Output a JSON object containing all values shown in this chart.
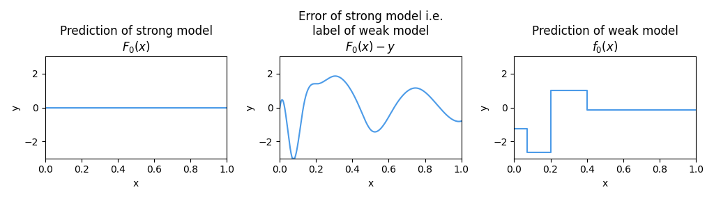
{
  "title1_l1": "Prediction of strong model",
  "title1_l2": "F_0(x)",
  "title2_l1": "Error of strong model i.e.",
  "title2_l2": "label of weak model",
  "title2_l3": "F_0(x) - y",
  "title3_l1": "Prediction of weak model",
  "title3_l2": "f_0(x)",
  "xlabel": "x",
  "ylabel": "y",
  "xlim": [
    0.0,
    1.0
  ],
  "ylim": [
    -3,
    3
  ],
  "line_color": "#4c9be8",
  "background_color": "#ffffff",
  "sine_amp": 3.0,
  "sine_k": 0.5,
  "square_x": [
    0.0,
    0.07,
    0.07,
    0.2,
    0.2,
    0.4,
    0.4,
    1.0
  ],
  "square_y": [
    -1.25,
    -1.25,
    -2.65,
    -2.65,
    1.0,
    1.0,
    -0.15,
    -0.15
  ]
}
